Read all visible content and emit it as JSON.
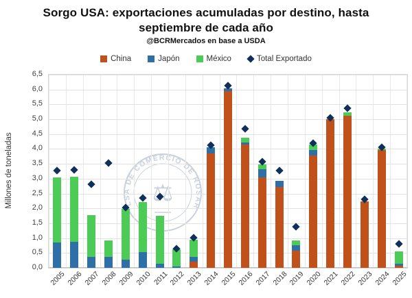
{
  "header": {
    "title": "Sorgo USA: exportaciones acumuladas por destino, hasta septiembre de cada año",
    "subtitle": "@BCRMercados en base a USDA"
  },
  "watermark": {
    "text": "BOLSA DE COMERCIO DE ROSARIO",
    "color": "#a9b6c9"
  },
  "chart_data": {
    "type": "bar",
    "subtype": "stacked-bars-with-total-markers",
    "title": "Sorgo USA: exportaciones acumuladas por destino, hasta septiembre de cada año",
    "subtitle": "@BCRMercados en base a USDA",
    "xlabel": "",
    "ylabel": "Millones de toneladas",
    "ylim": [
      0,
      6.5
    ],
    "ytick_step": 0.5,
    "decimal_separator": ",",
    "grid": true,
    "legend_position": "top-center",
    "categories": [
      2005,
      2006,
      2007,
      2008,
      2009,
      2010,
      2011,
      2012,
      2013,
      2014,
      2015,
      2016,
      2017,
      2018,
      2019,
      2020,
      2021,
      2022,
      2023,
      2024,
      2025
    ],
    "series": [
      {
        "name": "China",
        "key": "china",
        "type": "bar",
        "color": "#C0511B",
        "values": [
          0,
          0,
          0,
          0,
          0,
          0,
          0,
          0,
          0.2,
          3.85,
          5.95,
          4.15,
          3.05,
          2.73,
          0.58,
          3.77,
          5.0,
          5.12,
          2.24,
          3.96,
          0.07
        ]
      },
      {
        "name": "Japón",
        "key": "japon",
        "type": "bar",
        "color": "#2E6FA8",
        "values": [
          0.85,
          0.87,
          0.37,
          0.36,
          0.28,
          0.53,
          0.15,
          0.05,
          0.16,
          0.21,
          0.1,
          0.06,
          0.26,
          0.19,
          0.17,
          0.2,
          0,
          0,
          0,
          0,
          0.07
        ]
      },
      {
        "name": "México",
        "key": "mexico",
        "type": "bar",
        "color": "#4CCB57",
        "values": [
          2.2,
          2.19,
          1.41,
          0.57,
          1.7,
          1.68,
          1.6,
          0.58,
          0.58,
          0,
          0,
          0.17,
          0.17,
          0,
          0.17,
          0.17,
          0,
          0.11,
          0,
          0.04,
          0.41
        ]
      },
      {
        "name": "Total Exportado",
        "key": "total",
        "type": "scatter",
        "marker": "diamond",
        "color": "#10305A",
        "values": [
          3.27,
          3.29,
          2.82,
          3.53,
          2.03,
          2.36,
          2.39,
          0.65,
          1.02,
          4.12,
          6.12,
          4.67,
          3.57,
          3.28,
          1.38,
          4.2,
          5.05,
          5.37,
          2.31,
          4.06,
          0.8
        ]
      }
    ]
  }
}
